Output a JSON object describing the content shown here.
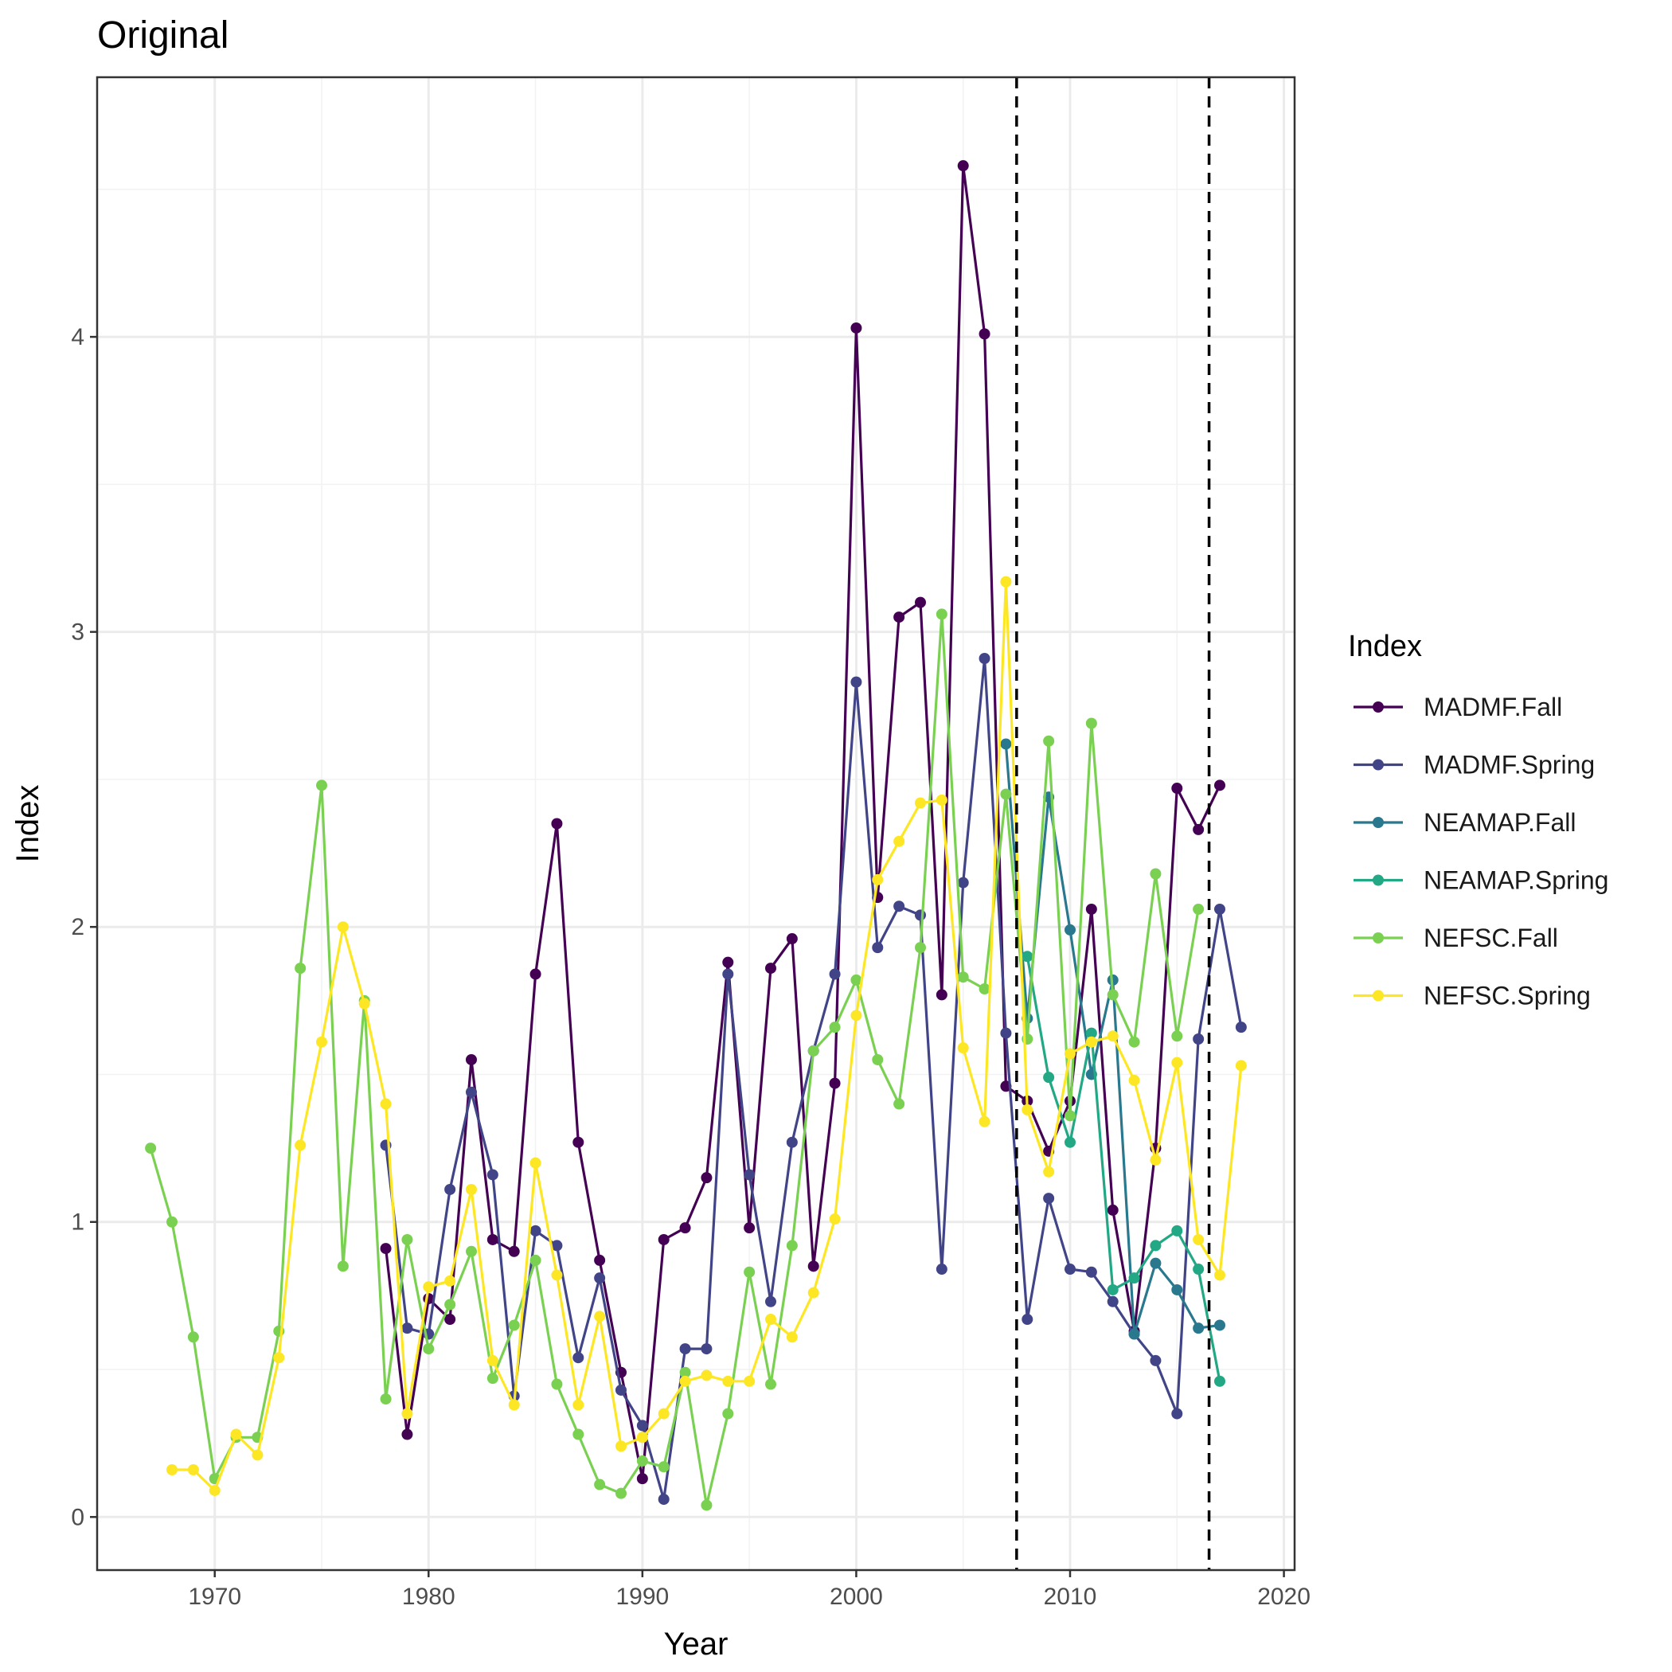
{
  "chart_data": {
    "type": "line",
    "title": "Original",
    "xlabel": "Year",
    "ylabel": "Index",
    "xlim": [
      1964.5,
      2020.5
    ],
    "ylim": [
      -0.18,
      4.88
    ],
    "x_ticks": [
      1970,
      1980,
      1990,
      2000,
      2010,
      2020
    ],
    "y_ticks": [
      0,
      1,
      2,
      3,
      4
    ],
    "grid": true,
    "legend_title": "Index",
    "legend_position": "right",
    "vlines": [
      2007.5,
      2016.5
    ],
    "series": [
      {
        "name": "MADMF.Fall",
        "color": "#440154",
        "x": [
          1978,
          1979,
          1980,
          1981,
          1982,
          1983,
          1984,
          1985,
          1986,
          1987,
          1988,
          1989,
          1990,
          1991,
          1992,
          1993,
          1994,
          1995,
          1996,
          1997,
          1998,
          1999,
          2000,
          2001,
          2002,
          2003,
          2004,
          2005,
          2006,
          2007,
          2008,
          2009,
          2010,
          2011,
          2012,
          2013,
          2014,
          2015,
          2016,
          2017
        ],
        "y": [
          0.91,
          0.28,
          0.74,
          0.67,
          1.55,
          0.94,
          0.9,
          1.84,
          2.35,
          1.27,
          0.87,
          0.49,
          0.13,
          0.94,
          0.98,
          1.15,
          1.88,
          0.98,
          1.86,
          1.96,
          0.85,
          1.47,
          4.03,
          2.1,
          3.05,
          3.1,
          1.77,
          4.58,
          4.01,
          1.46,
          1.41,
          1.24,
          1.41,
          2.06,
          1.04,
          0.63,
          1.25,
          2.47,
          2.33,
          2.48
        ]
      },
      {
        "name": "MADMF.Spring",
        "color": "#414487",
        "x": [
          1978,
          1979,
          1980,
          1981,
          1982,
          1983,
          1984,
          1985,
          1986,
          1987,
          1988,
          1989,
          1990,
          1991,
          1992,
          1993,
          1994,
          1995,
          1996,
          1997,
          1998,
          1999,
          2000,
          2001,
          2002,
          2003,
          2004,
          2005,
          2006,
          2007,
          2008,
          2009,
          2010,
          2011,
          2012,
          2013,
          2014,
          2015,
          2016,
          2017,
          2018
        ],
        "y": [
          1.26,
          0.64,
          0.62,
          1.11,
          1.44,
          1.16,
          0.41,
          0.97,
          0.92,
          0.54,
          0.81,
          0.43,
          0.31,
          0.06,
          0.57,
          0.57,
          1.84,
          1.16,
          0.73,
          1.27,
          1.58,
          1.84,
          2.83,
          1.93,
          2.07,
          2.04,
          0.84,
          2.15,
          2.91,
          1.64,
          0.67,
          1.08,
          0.84,
          0.83,
          0.73,
          0.62,
          0.53,
          0.35,
          1.62,
          2.06,
          1.66
        ]
      },
      {
        "name": "NEAMAP.Fall",
        "color": "#2a788e",
        "x": [
          2007,
          2008,
          2009,
          2010,
          2011,
          2012,
          2013,
          2014,
          2015,
          2016,
          2017
        ],
        "y": [
          2.62,
          1.69,
          2.44,
          1.99,
          1.5,
          1.82,
          0.62,
          0.86,
          0.77,
          0.64,
          0.65
        ]
      },
      {
        "name": "NEAMAP.Spring",
        "color": "#22a884",
        "x": [
          2008,
          2009,
          2010,
          2011,
          2012,
          2013,
          2014,
          2015,
          2016,
          2017
        ],
        "y": [
          1.9,
          1.49,
          1.27,
          1.64,
          0.77,
          0.81,
          0.92,
          0.97,
          0.84,
          0.46
        ]
      },
      {
        "name": "NEFSC.Fall",
        "color": "#7ad151",
        "x": [
          1967,
          1968,
          1969,
          1970,
          1971,
          1972,
          1973,
          1974,
          1975,
          1976,
          1977,
          1978,
          1979,
          1980,
          1981,
          1982,
          1983,
          1984,
          1985,
          1986,
          1987,
          1988,
          1989,
          1990,
          1991,
          1992,
          1993,
          1994,
          1995,
          1996,
          1997,
          1998,
          1999,
          2000,
          2001,
          2002,
          2003,
          2004,
          2005,
          2006,
          2007,
          2008,
          2009,
          2010,
          2011,
          2012,
          2013,
          2014,
          2015,
          2016
        ],
        "y": [
          1.25,
          1.0,
          0.61,
          0.13,
          0.27,
          0.27,
          0.63,
          1.86,
          2.48,
          0.85,
          1.75,
          0.4,
          0.94,
          0.57,
          0.72,
          0.9,
          0.47,
          0.65,
          0.87,
          0.45,
          0.28,
          0.11,
          0.08,
          0.19,
          0.17,
          0.49,
          0.04,
          0.35,
          0.83,
          0.45,
          0.92,
          1.58,
          1.66,
          1.82,
          1.55,
          1.4,
          1.93,
          3.06,
          1.83,
          1.79,
          2.45,
          1.62,
          2.63,
          1.36,
          2.69,
          1.77,
          1.61,
          2.18,
          1.63,
          2.06
        ]
      },
      {
        "name": "NEFSC.Spring",
        "color": "#fde725",
        "x": [
          1968,
          1969,
          1970,
          1971,
          1972,
          1973,
          1974,
          1975,
          1976,
          1977,
          1978,
          1979,
          1980,
          1981,
          1982,
          1983,
          1984,
          1985,
          1986,
          1987,
          1988,
          1989,
          1990,
          1991,
          1992,
          1993,
          1994,
          1995,
          1996,
          1997,
          1998,
          1999,
          2000,
          2001,
          2002,
          2003,
          2004,
          2005,
          2006,
          2007,
          2008,
          2009,
          2010,
          2011,
          2012,
          2013,
          2014,
          2015,
          2016,
          2017,
          2018
        ],
        "y": [
          0.16,
          0.16,
          0.09,
          0.28,
          0.21,
          0.54,
          1.26,
          1.61,
          2.0,
          1.74,
          1.4,
          0.35,
          0.78,
          0.8,
          1.11,
          0.53,
          0.38,
          1.2,
          0.82,
          0.38,
          0.68,
          0.24,
          0.27,
          0.35,
          0.46,
          0.48,
          0.46,
          0.46,
          0.67,
          0.61,
          0.76,
          1.01,
          1.7,
          2.16,
          2.29,
          2.42,
          2.43,
          1.59,
          1.34,
          3.17,
          1.38,
          1.17,
          1.57,
          1.61,
          1.63,
          1.48,
          1.21,
          1.54,
          0.94,
          0.82,
          1.53
        ]
      }
    ]
  }
}
